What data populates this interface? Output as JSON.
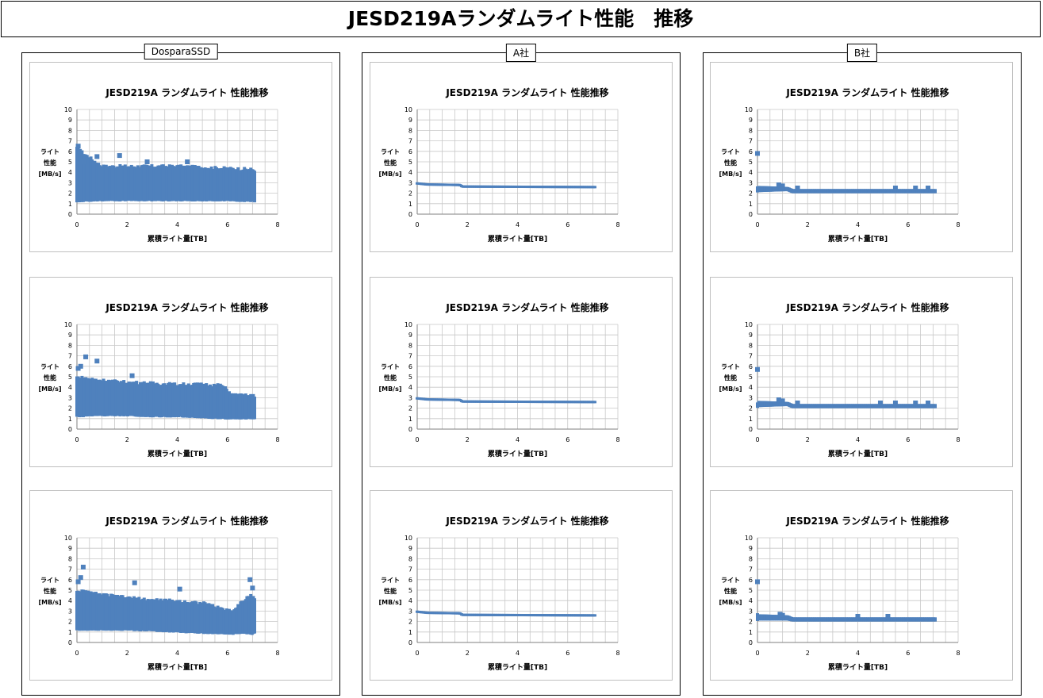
{
  "page": {
    "title": "JESD219Aランダムライト性能　推移"
  },
  "colors": {
    "series": "#4f81bd",
    "grid": "#c8c8c8",
    "axis": "#7f7f7f"
  },
  "groups": [
    {
      "label": "DosparaSSD"
    },
    {
      "label": "A社"
    },
    {
      "label": "B社"
    }
  ],
  "chart_data": [
    {
      "type": "scatter",
      "title": "JESD219A ランダムライト 性能推移",
      "xlabel": "累積ライト量[TB]",
      "ylabel_lines": [
        "ライト",
        "性能",
        "[MB/s]"
      ],
      "xlim": [
        0,
        8
      ],
      "ylim": [
        0,
        10
      ],
      "x_ticks": [
        0,
        2,
        4,
        6,
        8
      ],
      "y_ticks": [
        0,
        1,
        2,
        3,
        4,
        5,
        6,
        7,
        8,
        9,
        10
      ],
      "grid": true,
      "legend": "none",
      "series": [
        {
          "band": [
            [
              0,
              1.2,
              6.3
            ],
            [
              1,
              1.3,
              4.6
            ],
            [
              2,
              1.3,
              4.6
            ],
            [
              3,
              1.3,
              4.6
            ],
            [
              4,
              1.3,
              4.6
            ],
            [
              5,
              1.3,
              4.5
            ],
            [
              6,
              1.3,
              4.4
            ],
            [
              7.1,
              1.2,
              4.3
            ]
          ],
          "points": [
            [
              0.05,
              6.5
            ],
            [
              0.1,
              6.0
            ],
            [
              0.8,
              5.5
            ],
            [
              1.7,
              5.6
            ],
            [
              0.3,
              5.0
            ],
            [
              2.8,
              5.0
            ],
            [
              4.4,
              5.0
            ]
          ]
        }
      ]
    },
    {
      "type": "scatter",
      "title": "JESD219A ランダムライト 性能推移",
      "xlabel": "累積ライト量[TB]",
      "ylabel_lines": [
        "ライト",
        "性能",
        "[MB/s]"
      ],
      "xlim": [
        0,
        8
      ],
      "ylim": [
        0,
        10
      ],
      "x_ticks": [
        0,
        2,
        4,
        6,
        8
      ],
      "y_ticks": [
        0,
        1,
        2,
        3,
        4,
        5,
        6,
        7,
        8,
        9,
        10
      ],
      "grid": true,
      "legend": "none",
      "series": [
        {
          "band": [
            [
              0,
              2.85,
              3.05
            ],
            [
              0.4,
              2.75,
              2.95
            ],
            [
              1.7,
              2.7,
              2.9
            ],
            [
              1.8,
              2.55,
              2.75
            ],
            [
              7.1,
              2.5,
              2.7
            ]
          ],
          "points": []
        }
      ]
    },
    {
      "type": "scatter",
      "title": "JESD219A ランダムライト 性能推移",
      "xlabel": "累積ライト量[TB]",
      "ylabel_lines": [
        "ライト",
        "性能",
        "[MB/s]"
      ],
      "xlim": [
        0,
        8
      ],
      "ylim": [
        0,
        10
      ],
      "x_ticks": [
        0,
        2,
        4,
        6,
        8
      ],
      "y_ticks": [
        0,
        1,
        2,
        3,
        4,
        5,
        6,
        7,
        8,
        9,
        10
      ],
      "grid": true,
      "legend": "none",
      "series": [
        {
          "band": [
            [
              0,
              2.1,
              2.7
            ],
            [
              1.2,
              2.2,
              2.6
            ],
            [
              1.4,
              2.0,
              2.4
            ],
            [
              7.1,
              2.0,
              2.4
            ]
          ],
          "points": [
            [
              0,
              5.8
            ],
            [
              1.0,
              2.7
            ],
            [
              0.85,
              2.8
            ],
            [
              1.6,
              2.5
            ],
            [
              5.5,
              2.5
            ],
            [
              6.3,
              2.5
            ],
            [
              6.8,
              2.5
            ]
          ]
        }
      ]
    },
    {
      "type": "scatter",
      "title": "JESD219A ランダムライト 性能推移",
      "xlabel": "累積ライト量[TB]",
      "ylabel_lines": [
        "ライト",
        "性能",
        "[MB/s]"
      ],
      "xlim": [
        0,
        8
      ],
      "ylim": [
        0,
        10
      ],
      "x_ticks": [
        0,
        2,
        4,
        6,
        8
      ],
      "y_ticks": [
        0,
        1,
        2,
        3,
        4,
        5,
        6,
        7,
        8,
        9,
        10
      ],
      "grid": true,
      "legend": "none",
      "series": [
        {
          "band": [
            [
              0,
              1.2,
              5.0
            ],
            [
              1,
              1.3,
              4.7
            ],
            [
              2,
              1.3,
              4.5
            ],
            [
              3,
              1.2,
              4.4
            ],
            [
              4,
              1.2,
              4.3
            ],
            [
              5,
              1.1,
              4.3
            ],
            [
              5.8,
              1.0,
              4.2
            ],
            [
              6.2,
              1.0,
              3.3
            ],
            [
              7.1,
              1.0,
              3.2
            ]
          ],
          "points": [
            [
              0.05,
              5.8
            ],
            [
              0.15,
              6.0
            ],
            [
              0.35,
              6.9
            ],
            [
              0.8,
              6.5
            ],
            [
              2.2,
              5.1
            ]
          ]
        }
      ]
    },
    {
      "type": "scatter",
      "title": "JESD219A ランダムライト 性能推移",
      "xlabel": "累積ライト量[TB]",
      "ylabel_lines": [
        "ライト",
        "性能",
        "[MB/s]"
      ],
      "xlim": [
        0,
        8
      ],
      "ylim": [
        0,
        10
      ],
      "x_ticks": [
        0,
        2,
        4,
        6,
        8
      ],
      "y_ticks": [
        0,
        1,
        2,
        3,
        4,
        5,
        6,
        7,
        8,
        9,
        10
      ],
      "grid": true,
      "legend": "none",
      "series": [
        {
          "band": [
            [
              0,
              2.85,
              3.05
            ],
            [
              0.4,
              2.75,
              2.95
            ],
            [
              1.7,
              2.7,
              2.9
            ],
            [
              1.8,
              2.55,
              2.75
            ],
            [
              7.1,
              2.5,
              2.7
            ]
          ],
          "points": []
        }
      ]
    },
    {
      "type": "scatter",
      "title": "JESD219A ランダムライト 性能推移",
      "xlabel": "累積ライト量[TB]",
      "ylabel_lines": [
        "ライト",
        "性能",
        "[MB/s]"
      ],
      "xlim": [
        0,
        8
      ],
      "ylim": [
        0,
        10
      ],
      "x_ticks": [
        0,
        2,
        4,
        6,
        8
      ],
      "y_ticks": [
        0,
        1,
        2,
        3,
        4,
        5,
        6,
        7,
        8,
        9,
        10
      ],
      "grid": true,
      "legend": "none",
      "series": [
        {
          "band": [
            [
              0,
              2.1,
              2.7
            ],
            [
              1.2,
              2.2,
              2.6
            ],
            [
              1.4,
              2.0,
              2.4
            ],
            [
              7.1,
              2.0,
              2.4
            ]
          ],
          "points": [
            [
              0,
              5.7
            ],
            [
              0.85,
              2.8
            ],
            [
              1.0,
              2.7
            ],
            [
              1.6,
              2.5
            ],
            [
              4.9,
              2.5
            ],
            [
              5.5,
              2.5
            ],
            [
              6.3,
              2.5
            ],
            [
              6.8,
              2.5
            ]
          ]
        }
      ]
    },
    {
      "type": "scatter",
      "title": "JESD219A ランダムライト 性能推移",
      "xlabel": "累積ライト量[TB]",
      "ylabel_lines": [
        "ライト",
        "性能",
        "[MB/s]"
      ],
      "xlim": [
        0,
        8
      ],
      "ylim": [
        0,
        10
      ],
      "x_ticks": [
        0,
        2,
        4,
        6,
        8
      ],
      "y_ticks": [
        0,
        1,
        2,
        3,
        4,
        5,
        6,
        7,
        8,
        9,
        10
      ],
      "grid": true,
      "legend": "none",
      "series": [
        {
          "band": [
            [
              0,
              1.2,
              5.0
            ],
            [
              1,
              1.2,
              4.6
            ],
            [
              2,
              1.2,
              4.3
            ],
            [
              3,
              1.1,
              4.1
            ],
            [
              4,
              1.0,
              4.0
            ],
            [
              5,
              0.9,
              3.8
            ],
            [
              6.2,
              0.8,
              3.0
            ],
            [
              6.6,
              0.9,
              4.0
            ],
            [
              7.0,
              0.8,
              4.6
            ],
            [
              7.1,
              0.9,
              4.2
            ]
          ],
          "points": [
            [
              0.05,
              5.8
            ],
            [
              0.15,
              6.2
            ],
            [
              0.25,
              7.2
            ],
            [
              2.3,
              5.7
            ],
            [
              4.1,
              5.1
            ],
            [
              6.9,
              6.0
            ],
            [
              7.0,
              5.2
            ]
          ]
        }
      ]
    },
    {
      "type": "scatter",
      "title": "JESD219A ランダムライト 性能推移",
      "xlabel": "累積ライト量[TB]",
      "ylabel_lines": [
        "ライト",
        "性能",
        "[MB/s]"
      ],
      "xlim": [
        0,
        8
      ],
      "ylim": [
        0,
        10
      ],
      "x_ticks": [
        0,
        2,
        4,
        6,
        8
      ],
      "y_ticks": [
        0,
        1,
        2,
        3,
        4,
        5,
        6,
        7,
        8,
        9,
        10
      ],
      "grid": true,
      "legend": "none",
      "series": [
        {
          "band": [
            [
              0,
              2.85,
              3.05
            ],
            [
              0.4,
              2.75,
              2.95
            ],
            [
              1.7,
              2.7,
              2.9
            ],
            [
              1.8,
              2.55,
              2.75
            ],
            [
              7.1,
              2.5,
              2.7
            ]
          ],
          "points": []
        }
      ]
    },
    {
      "type": "scatter",
      "title": "JESD219A ランダムライト 性能推移",
      "xlabel": "累積ライト量[TB]",
      "ylabel_lines": [
        "ライト",
        "性能",
        "[MB/s]"
      ],
      "xlim": [
        0,
        8
      ],
      "ylim": [
        0,
        10
      ],
      "x_ticks": [
        0,
        2,
        4,
        6,
        8
      ],
      "y_ticks": [
        0,
        1,
        2,
        3,
        4,
        5,
        6,
        7,
        8,
        9,
        10
      ],
      "grid": true,
      "legend": "none",
      "series": [
        {
          "band": [
            [
              0,
              2.1,
              2.7
            ],
            [
              1.2,
              2.1,
              2.6
            ],
            [
              1.4,
              2.0,
              2.4
            ],
            [
              7.1,
              2.0,
              2.4
            ]
          ],
          "points": [
            [
              0,
              5.8
            ],
            [
              0.9,
              2.7
            ],
            [
              1.0,
              2.6
            ],
            [
              5.2,
              2.5
            ],
            [
              4.0,
              2.5
            ]
          ]
        }
      ]
    }
  ]
}
